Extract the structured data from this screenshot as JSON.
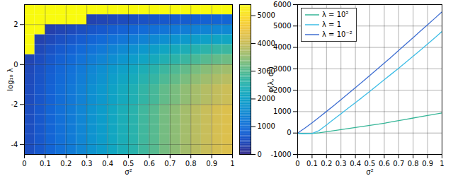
{
  "chart_data": [
    {
      "type": "heatmap",
      "xlabel": "σ²",
      "ylabel": "log₁₀ λ",
      "xlim": [
        0,
        1
      ],
      "ylim": [
        -4.5,
        3
      ],
      "xticks": [
        0,
        0.1,
        0.2,
        0.3,
        0.4,
        0.5,
        0.6,
        0.7,
        0.8,
        0.9,
        1
      ],
      "yticks": [
        -4,
        -2,
        0,
        2
      ],
      "grid": true,
      "x": [
        0.025,
        0.075,
        0.125,
        0.175,
        0.225,
        0.275,
        0.325,
        0.375,
        0.425,
        0.475,
        0.525,
        0.575,
        0.625,
        0.675,
        0.725,
        0.775,
        0.825,
        0.875,
        0.925,
        0.975
      ],
      "y": [
        -4.25,
        -3.75,
        -3.25,
        -2.75,
        -2.25,
        -1.75,
        -1.25,
        -0.75,
        -0.25,
        0.25,
        0.75,
        1.25,
        1.75,
        2.25,
        2.75
      ],
      "cells": [
        [
          500,
          650,
          850,
          1050,
          1250,
          1450,
          1700,
          1900,
          2150,
          2350,
          2550,
          2800,
          3000,
          3250,
          3450,
          3650,
          3850,
          4000,
          4150,
          4250
        ],
        [
          500,
          650,
          850,
          1050,
          1250,
          1450,
          1700,
          1900,
          2150,
          2350,
          2550,
          2800,
          3000,
          3250,
          3450,
          3650,
          3850,
          4000,
          4150,
          4250
        ],
        [
          500,
          650,
          850,
          1050,
          1250,
          1450,
          1700,
          1900,
          2150,
          2350,
          2550,
          2800,
          3000,
          3250,
          3450,
          3650,
          3850,
          4000,
          4150,
          4250
        ],
        [
          500,
          650,
          850,
          1050,
          1250,
          1450,
          1700,
          1900,
          2150,
          2350,
          2550,
          2800,
          3000,
          3250,
          3450,
          3650,
          3850,
          4000,
          4150,
          4250
        ],
        [
          500,
          650,
          850,
          1050,
          1250,
          1450,
          1700,
          1900,
          2150,
          2350,
          2550,
          2800,
          3000,
          3250,
          3450,
          3650,
          3850,
          4000,
          4150,
          4250
        ],
        [
          475,
          620,
          810,
          1000,
          1190,
          1380,
          1615,
          1805,
          2040,
          2230,
          2420,
          2660,
          2850,
          3090,
          3280,
          3470,
          3660,
          3800,
          3940,
          4040
        ],
        [
          475,
          620,
          810,
          1000,
          1190,
          1380,
          1615,
          1805,
          2040,
          2230,
          2420,
          2660,
          2850,
          3090,
          3280,
          3470,
          3660,
          3800,
          3940,
          4040
        ],
        [
          450,
          585,
          765,
          945,
          1125,
          1305,
          1530,
          1710,
          1935,
          2115,
          2295,
          2520,
          2700,
          2925,
          3105,
          3285,
          3465,
          3600,
          3735,
          3825
        ],
        [
          425,
          550,
          720,
          890,
          1060,
          1230,
          1445,
          1615,
          1830,
          2000,
          2170,
          2380,
          2550,
          2760,
          2930,
          3100,
          3270,
          3400,
          3530,
          3610
        ],
        [
          375,
          490,
          640,
          790,
          940,
          1090,
          1275,
          1425,
          1610,
          1760,
          1910,
          2100,
          2250,
          2440,
          2590,
          2740,
          2890,
          3000,
          3110,
          3190
        ],
        [
          5400,
          420,
          550,
          680,
          810,
          940,
          1105,
          1235,
          1400,
          1530,
          1660,
          1820,
          1950,
          2110,
          2240,
          2370,
          2500,
          2600,
          2700,
          2760
        ],
        [
          5400,
          325,
          425,
          525,
          625,
          725,
          850,
          950,
          1075,
          1175,
          1275,
          1400,
          1500,
          1625,
          1725,
          1825,
          1925,
          2000,
          2075,
          2125
        ],
        [
          5400,
          5400,
          300,
          370,
          440,
          510,
          595,
          665,
          750,
          820,
          890,
          980,
          1050,
          1140,
          1210,
          1280,
          1350,
          1400,
          1450,
          1490
        ],
        [
          5400,
          5400,
          5400,
          5400,
          5400,
          5400,
          340,
          380,
          430,
          470,
          510,
          560,
          600,
          650,
          690,
          730,
          770,
          800,
          830,
          850
        ],
        [
          5400,
          5400,
          5400,
          5400,
          5400,
          5400,
          5400,
          5400,
          5400,
          5400,
          5400,
          5400,
          5400,
          5400,
          5400,
          5400,
          5400,
          5400,
          5400,
          5400
        ]
      ],
      "colorbar_lim": [
        0,
        5400
      ],
      "colorbar_ticks": [
        0,
        1000,
        2000,
        3000,
        4000,
        5000
      ]
    },
    {
      "type": "line",
      "xlabel": "σ²",
      "ylabel": "φ(λ, σ²)",
      "xlim": [
        0,
        1
      ],
      "ylim": [
        -1000,
        6000
      ],
      "xticks": [
        0,
        0.1,
        0.2,
        0.3,
        0.4,
        0.5,
        0.6,
        0.7,
        0.8,
        0.9,
        1
      ],
      "yticks": [
        -1000,
        0,
        1000,
        2000,
        3000,
        4000,
        5000,
        6000
      ],
      "grid": true,
      "legend": "upper left",
      "x": [
        0,
        0.05,
        0.1,
        0.15,
        0.2,
        0.25,
        0.3,
        0.35,
        0.4,
        0.45,
        0.5,
        0.55,
        0.6,
        0.65,
        0.7,
        0.75,
        0.8,
        0.85,
        0.9,
        0.95,
        1
      ],
      "series": [
        {
          "name": "λ = 10²",
          "color": "#35b597",
          "values": [
            -10,
            -20,
            -20,
            10,
            60,
            110,
            160,
            210,
            260,
            310,
            360,
            410,
            460,
            520,
            580,
            640,
            700,
            760,
            820,
            880,
            940
          ]
        },
        {
          "name": "λ = 1",
          "color": "#3dbde6",
          "values": [
            -20,
            -40,
            -20,
            120,
            380,
            640,
            900,
            1160,
            1420,
            1680,
            1950,
            2220,
            2490,
            2760,
            3030,
            3310,
            3590,
            3870,
            4160,
            4450,
            4750
          ]
        },
        {
          "name": "λ = 10⁻²",
          "color": "#3f6fd2",
          "values": [
            0,
            230,
            480,
            740,
            1010,
            1280,
            1560,
            1840,
            2120,
            2400,
            2690,
            2980,
            3270,
            3560,
            3860,
            4160,
            4460,
            4760,
            5060,
            5360,
            5660
          ]
        }
      ]
    }
  ]
}
